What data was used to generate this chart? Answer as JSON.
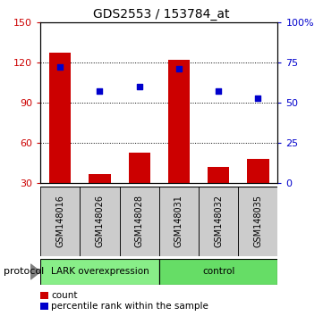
{
  "title": "GDS2553 / 153784_at",
  "samples": [
    "GSM148016",
    "GSM148026",
    "GSM148028",
    "GSM148031",
    "GSM148032",
    "GSM148035"
  ],
  "counts": [
    127,
    37,
    53,
    122,
    42,
    48
  ],
  "percentile_ranks": [
    72,
    57,
    60,
    71,
    57,
    53
  ],
  "ylim_left": [
    30,
    150
  ],
  "ylim_right": [
    0,
    100
  ],
  "yticks_left": [
    30,
    60,
    90,
    120,
    150
  ],
  "yticks_right": [
    0,
    25,
    50,
    75,
    100
  ],
  "yticklabels_right": [
    "0",
    "25",
    "50",
    "75",
    "100%"
  ],
  "bar_color": "#cc0000",
  "dot_color": "#0000cc",
  "group1_label": "LARK overexpression",
  "group2_label": "control",
  "group1_color": "#88ee88",
  "group2_color": "#66dd66",
  "sample_box_color": "#cccccc",
  "protocol_label": "protocol",
  "legend_count_label": "count",
  "legend_pct_label": "percentile rank within the sample",
  "bar_width": 0.55,
  "bar_bottom": 30,
  "title_fontsize": 10,
  "tick_fontsize": 8,
  "sample_fontsize": 7,
  "proto_fontsize": 7.5,
  "legend_fontsize": 7.5
}
